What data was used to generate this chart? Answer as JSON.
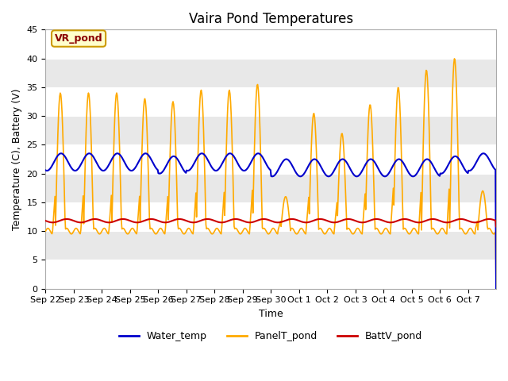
{
  "title": "Vaira Pond Temperatures",
  "xlabel": "Time",
  "ylabel": "Temperature (C), Battery (V)",
  "annotation_text": "VR_pond",
  "annotation_bg": "#ffffcc",
  "annotation_border": "#cc9900",
  "ylim": [
    0,
    45
  ],
  "yticks": [
    0,
    5,
    10,
    15,
    20,
    25,
    30,
    35,
    40,
    45
  ],
  "x_labels": [
    "Sep 22",
    "Sep 23",
    "Sep 24",
    "Sep 25",
    "Sep 26",
    "Sep 27",
    "Sep 28",
    "Sep 29",
    "Sep 30",
    "Oct 1",
    "Oct 2",
    "Oct 3",
    "Oct 4",
    "Oct 5",
    "Oct 6",
    "Oct 7"
  ],
  "water_color": "#0000cc",
  "panel_color": "#ffaa00",
  "batt_color": "#cc0000",
  "fig_bg": "#ffffff",
  "plot_bg": "#ffffff",
  "band_light": "#e8e8e8",
  "band_dark": "#d4d4d4",
  "legend_labels": [
    "Water_temp",
    "PanelT_pond",
    "BattV_pond"
  ],
  "title_fontsize": 12,
  "axis_label_fontsize": 9,
  "tick_fontsize": 8,
  "n_days": 16,
  "peaks": [
    34,
    34,
    34,
    33,
    32.5,
    34.5,
    34.5,
    35.5,
    16,
    30.5,
    27,
    32,
    35,
    38,
    40,
    17
  ],
  "water_base": [
    22,
    22,
    22,
    22,
    21.5,
    22,
    22,
    22,
    21,
    21,
    21,
    21,
    21,
    21,
    21.5,
    22
  ],
  "batt_base": 11.8,
  "batt_amp": 0.3
}
